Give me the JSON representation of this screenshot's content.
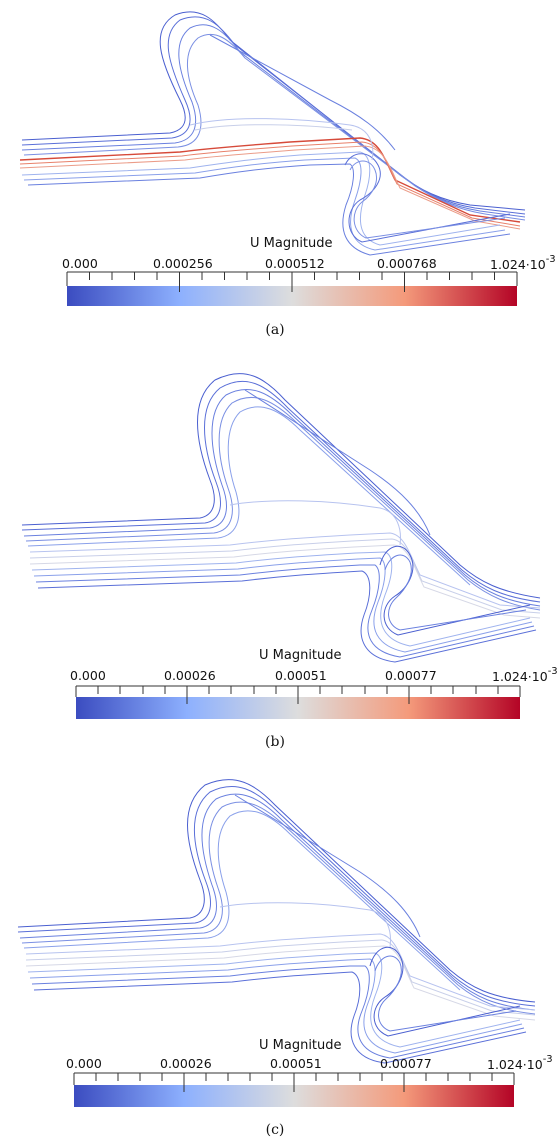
{
  "panels": [
    {
      "caption": "(a)",
      "colorbar": {
        "title": "U Magnitude",
        "ticks": [
          "0.000",
          "0.000256",
          "0.000512",
          "0.000768"
        ],
        "max_label": "1.024",
        "max_mult": "·10",
        "max_exp": "-3"
      }
    },
    {
      "caption": "(b)",
      "colorbar": {
        "title": "U Magnitude",
        "ticks": [
          "0.000",
          "0.00026",
          "0.00051",
          "0.00077"
        ],
        "max_label": "1.024",
        "max_mult": "·10",
        "max_exp": "-3"
      }
    },
    {
      "caption": "(c)",
      "colorbar": {
        "title": "U Magnitude",
        "ticks": [
          "0.000",
          "0.00026",
          "0.00051",
          "0.00077"
        ],
        "max_label": "1.024",
        "max_mult": "·10",
        "max_exp": "-3"
      }
    }
  ],
  "colors": {
    "low": "#3b4cc0",
    "mid": "#dddddd",
    "high": "#b40426",
    "streamline_blue": "#4a5fd0"
  }
}
